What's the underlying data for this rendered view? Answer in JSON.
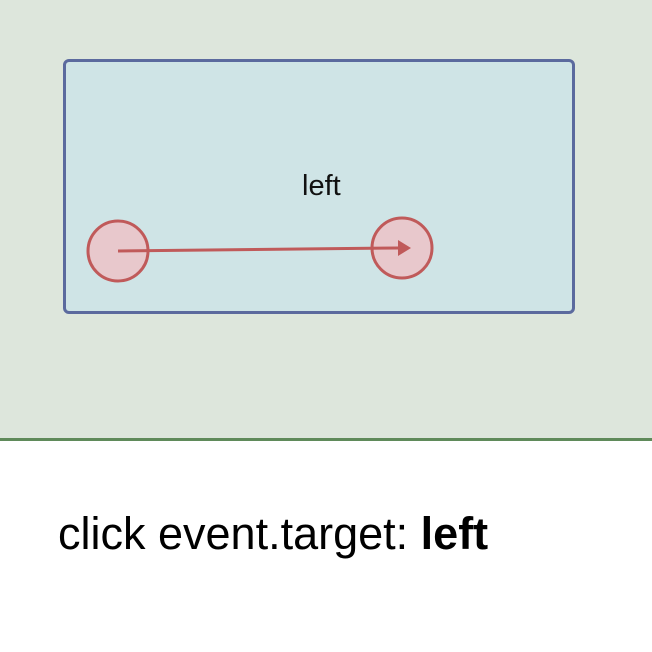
{
  "target_box": {
    "label": "left"
  },
  "gesture": {
    "kind": "drag",
    "direction": "left-to-right"
  },
  "readout": {
    "prefix": "click event.target:",
    "value": "left"
  },
  "colors": {
    "stage_bg": "#dde6dc",
    "stage_border": "#5f8a5a",
    "box_fill": "#cfe4e6",
    "box_border": "#5b6a9e",
    "gesture_stroke": "#c05a5a",
    "gesture_fill": "#e8c8cc"
  }
}
